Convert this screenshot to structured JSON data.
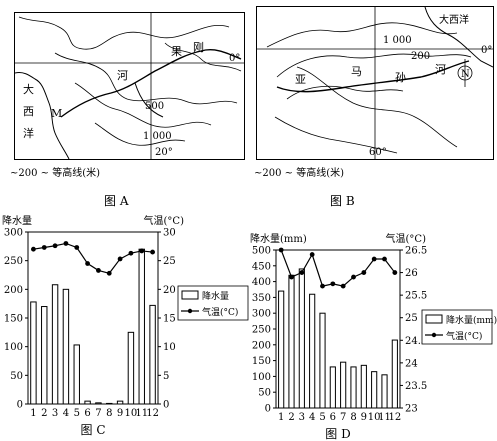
{
  "maps": {
    "A": {
      "labels": {
        "congo": "刚",
        "guo": "果",
        "he": "河",
        "da": "大",
        "xi": "西",
        "yang": "洋",
        "m": "M",
        "c500": "500",
        "c1000": "1 000",
        "lat0": "0°",
        "lon20": "20°"
      },
      "legend": "~200 ~ 等高线(米)",
      "caption": "图 A"
    },
    "B": {
      "labels": {
        "atlantic": "大西洋",
        "c1000": "1 000",
        "c200": "200",
        "lat0": "0°",
        "ya": "亚",
        "ma": "马",
        "sun": "孙",
        "he": "河",
        "n": "N",
        "lon60": "60°"
      },
      "legend": "~200 ~ 等高线(米)",
      "caption": "图 B"
    }
  },
  "chart_data": [
    {
      "type": "bar",
      "caption": "图 C",
      "ylabel_left": "降水量",
      "ylabel_right": "气温(°C)",
      "categories": [
        "1",
        "2",
        "3",
        "4",
        "5",
        "6",
        "7",
        "8",
        "9",
        "10",
        "11",
        "12"
      ],
      "series": [
        {
          "name": "降水量",
          "type": "bar",
          "axis": "left",
          "values": [
            178,
            170,
            208,
            200,
            103,
            5,
            2,
            1,
            5,
            125,
            270,
            172
          ]
        },
        {
          "name": "气温(°C)",
          "type": "line",
          "axis": "right",
          "values": [
            27,
            27.3,
            27.6,
            28,
            27.3,
            24.5,
            23.3,
            22.8,
            25.3,
            26.3,
            26.7,
            26.5
          ]
        }
      ],
      "ylim_left": [
        0,
        300
      ],
      "yticks_left": [
        0,
        50,
        100,
        150,
        200,
        250,
        300
      ],
      "ylim_right": [
        0,
        30
      ],
      "yticks_right": [
        0,
        5,
        10,
        15,
        20,
        25,
        30
      ],
      "legend_position": "right"
    },
    {
      "type": "bar",
      "caption": "图 D",
      "ylabel_left": "降水量(mm)",
      "ylabel_right": "气温(°C)",
      "categories": [
        "1",
        "2",
        "3",
        "4",
        "5",
        "6",
        "7",
        "8",
        "9",
        "10",
        "11",
        "12"
      ],
      "series": [
        {
          "name": "降水量(mm)",
          "type": "bar",
          "axis": "left",
          "values": [
            370,
            420,
            440,
            360,
            300,
            130,
            145,
            130,
            135,
            115,
            105,
            215
          ]
        },
        {
          "name": "气温(°C)",
          "type": "line",
          "axis": "right",
          "values": [
            26.5,
            25.9,
            26,
            26.4,
            25.7,
            25.75,
            25.7,
            25.9,
            26,
            26.3,
            26.3,
            26
          ]
        }
      ],
      "ylim_left": [
        0,
        500
      ],
      "yticks_left": [
        0,
        50,
        100,
        150,
        200,
        250,
        300,
        350,
        400,
        450,
        500
      ],
      "ylim_right": [
        23,
        26.5
      ],
      "yticks_right": [
        23,
        23.5,
        24,
        24.5,
        25,
        25.5,
        26,
        26.5
      ],
      "legend_position": "right"
    }
  ]
}
